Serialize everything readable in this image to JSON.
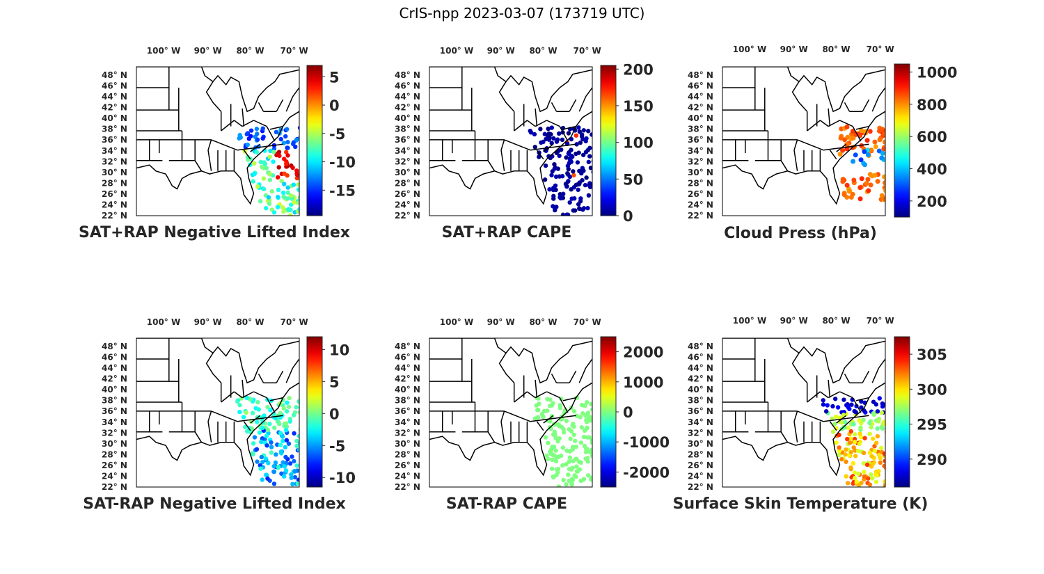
{
  "figure": {
    "title": "CrIS-npp 2023-03-07 (173719 UTC)"
  },
  "map": {
    "lon_ticks": [
      "100",
      "90",
      "80",
      "70"
    ],
    "lon_hemi": "W",
    "lat_ticks": [
      "48",
      "46",
      "44",
      "42",
      "40",
      "38",
      "36",
      "34",
      "32",
      "30",
      "28",
      "26",
      "24",
      "22"
    ],
    "lat_hemi": "N",
    "degree_mark": "°"
  },
  "panels": [
    {
      "id": "neg-li-sum",
      "title": "SAT+RAP Negative Lifted Index",
      "colorbar": {
        "ticks": [
          "5",
          "0",
          "-5",
          "-10",
          "-15"
        ],
        "values": [
          5,
          0,
          -5,
          -10,
          -15
        ],
        "range": [
          -19.5,
          7
        ]
      },
      "field": "mixed-cool-warm"
    },
    {
      "id": "cape-sum",
      "title": "SAT+RAP CAPE",
      "colorbar": {
        "ticks": [
          "200",
          "150",
          "100",
          "50",
          "0"
        ],
        "values": [
          200,
          150,
          100,
          50,
          0
        ],
        "range": [
          0,
          205
        ]
      },
      "field": "mostly-low"
    },
    {
      "id": "cloud-press",
      "title": "Cloud Press (hPa)",
      "colorbar": {
        "ticks": [
          "1000",
          "800",
          "600",
          "400",
          "200"
        ],
        "values": [
          1000,
          800,
          600,
          400,
          200
        ],
        "range": [
          100,
          1050
        ]
      },
      "field": "scattered-high"
    },
    {
      "id": "neg-li-diff",
      "title": "SAT-RAP Negative Lifted Index",
      "colorbar": {
        "ticks": [
          "10",
          "5",
          "0",
          "-5",
          "-10"
        ],
        "values": [
          10,
          5,
          0,
          -5,
          -10
        ],
        "range": [
          -11.5,
          12
        ]
      },
      "field": "near-neutral-cool"
    },
    {
      "id": "cape-diff",
      "title": "SAT-RAP CAPE",
      "colorbar": {
        "ticks": [
          "2000",
          "1000",
          "0",
          "-1000",
          "-2000"
        ],
        "values": [
          2000,
          1000,
          0,
          -1000,
          -2000
        ],
        "range": [
          -2500,
          2500
        ]
      },
      "field": "uniform-zero"
    },
    {
      "id": "skin-temp",
      "title": "Surface Skin Temperature (K)",
      "colorbar": {
        "ticks": [
          "305",
          "300",
          "295",
          "290"
        ],
        "values": [
          305,
          300,
          295,
          290
        ],
        "range": [
          286,
          307.5
        ]
      },
      "field": "warm-south-cold-north"
    }
  ]
}
